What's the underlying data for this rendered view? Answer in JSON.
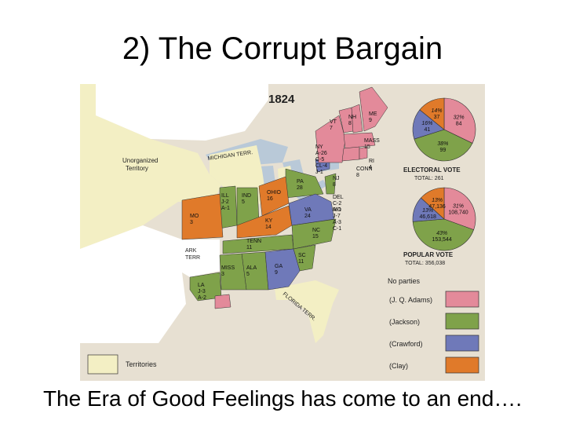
{
  "slide": {
    "title": "2) The Corrupt Bargain",
    "caption": "The Era of Good Feelings has come to an end…."
  },
  "map": {
    "year": "1824",
    "region_labels": {
      "unorganized": "Unorganized\nTerritory",
      "michigan": "MICHIGAN TERR.",
      "ark_terr": "ARK\nTERR",
      "florida": "FLORIDA TERR."
    },
    "states": [
      {
        "abbr": "ME",
        "votes": "9",
        "party": "adams"
      },
      {
        "abbr": "VT",
        "votes": "7",
        "party": "adams"
      },
      {
        "abbr": "NH",
        "votes": "8",
        "party": "adams"
      },
      {
        "abbr": "MASS",
        "votes": "15",
        "party": "adams"
      },
      {
        "abbr": "RI",
        "votes": "4",
        "party": "adams"
      },
      {
        "abbr": "CONN",
        "votes": "8",
        "party": "adams"
      },
      {
        "abbr": "NY",
        "votes": "A-26 C-5 CL-4 J-1",
        "party": "split"
      },
      {
        "abbr": "NJ",
        "votes": "8",
        "party": "jackson"
      },
      {
        "abbr": "PA",
        "votes": "28",
        "party": "jackson"
      },
      {
        "abbr": "DEL",
        "votes": "C-2 A-1",
        "party": "split"
      },
      {
        "abbr": "MD",
        "votes": "J-7 A-3 C-1",
        "party": "split"
      },
      {
        "abbr": "VA",
        "votes": "24",
        "party": "crawford"
      },
      {
        "abbr": "OHIO",
        "votes": "16",
        "party": "clay"
      },
      {
        "abbr": "IND",
        "votes": "5",
        "party": "jackson"
      },
      {
        "abbr": "ILL",
        "votes": "J-2 A-1",
        "party": "split"
      },
      {
        "abbr": "MO",
        "votes": "3",
        "party": "clay"
      },
      {
        "abbr": "KY",
        "votes": "14",
        "party": "clay"
      },
      {
        "abbr": "TENN",
        "votes": "11",
        "party": "jackson"
      },
      {
        "abbr": "NC",
        "votes": "15",
        "party": "jackson"
      },
      {
        "abbr": "SC",
        "votes": "11",
        "party": "jackson"
      },
      {
        "abbr": "GA",
        "votes": "9",
        "party": "crawford"
      },
      {
        "abbr": "ALA",
        "votes": "5",
        "party": "jackson"
      },
      {
        "abbr": "MISS",
        "votes": "3",
        "party": "jackson"
      },
      {
        "abbr": "LA",
        "votes": "J-3 A-2",
        "party": "split"
      }
    ],
    "electoral_vote": {
      "title": "ELECTORAL VOTE",
      "total": "TOTAL: 261",
      "slices": [
        {
          "party": "adams",
          "pct": "32%",
          "votes": "84",
          "value": 84
        },
        {
          "party": "jackson",
          "pct": "38%",
          "votes": "99",
          "value": 99
        },
        {
          "party": "crawford",
          "pct": "16%",
          "votes": "41",
          "value": 41
        },
        {
          "party": "clay",
          "pct": "14%",
          "votes": "37",
          "value": 37
        }
      ]
    },
    "popular_vote": {
      "title": "POPULAR VOTE",
      "total": "TOTAL: 356,038",
      "slices": [
        {
          "party": "adams",
          "pct": "31%",
          "votes": "108,740",
          "value": 108740
        },
        {
          "party": "jackson",
          "pct": "43%",
          "votes": "153,544",
          "value": 153544
        },
        {
          "party": "crawford",
          "pct": "13%",
          "votes": "46,618",
          "value": 46618
        },
        {
          "party": "clay",
          "pct": "13%",
          "votes": "47,136",
          "value": 47136
        }
      ]
    },
    "legend": {
      "heading": "No parties",
      "items": [
        {
          "party": "adams",
          "label": "(J. Q. Adams)",
          "color": "#e38a9a"
        },
        {
          "party": "jackson",
          "label": "(Jackson)",
          "color": "#7fa24a"
        },
        {
          "party": "crawford",
          "label": "(Crawford)",
          "color": "#6f79b9"
        },
        {
          "party": "clay",
          "label": "(Clay)",
          "color": "#e07a2a"
        }
      ],
      "territories_label": "Territories",
      "territories_color": "#f3efc4"
    }
  }
}
